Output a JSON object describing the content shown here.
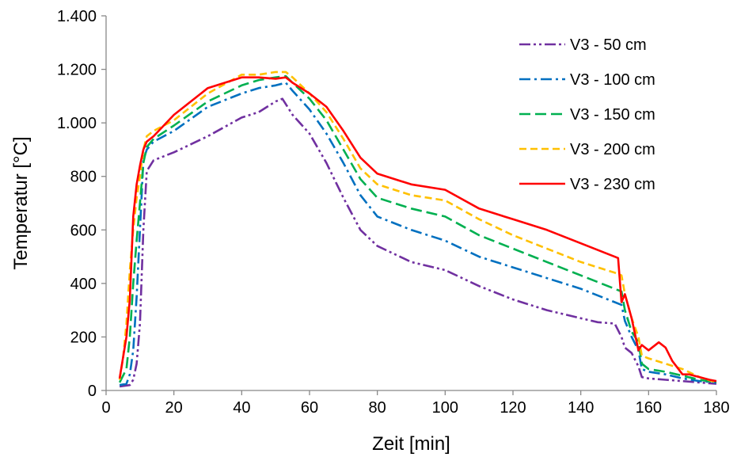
{
  "chart_data": {
    "type": "line",
    "title": "",
    "xlabel": "Zeit [min]",
    "ylabel": "Temperatur [°C]",
    "xlim": [
      0,
      180
    ],
    "ylim": [
      0,
      1400
    ],
    "xticks": [
      0,
      20,
      40,
      60,
      80,
      100,
      120,
      140,
      160,
      180
    ],
    "yticks": [
      0,
      200,
      400,
      600,
      800,
      1000,
      1200,
      1400
    ],
    "x_tick_labels": [
      "0",
      "20",
      "40",
      "60",
      "80",
      "100",
      "120",
      "140",
      "160",
      "180"
    ],
    "y_tick_labels": [
      "0",
      "200",
      "400",
      "600",
      "800",
      "1.000",
      "1.200",
      "1.400"
    ],
    "grid": false,
    "legend_position": "top-right",
    "series": [
      {
        "name": "V3 - 50 cm",
        "color": "#7030A0",
        "dash": "long-dash-dot-dot",
        "x": [
          4,
          7,
          8,
          9,
          10,
          11,
          12,
          14,
          20,
          30,
          40,
          45,
          50,
          52,
          55,
          60,
          65,
          70,
          75,
          80,
          90,
          100,
          110,
          120,
          130,
          140,
          145,
          150,
          152,
          153,
          155,
          157,
          158,
          160,
          165,
          170,
          175,
          180
        ],
        "y": [
          15,
          20,
          40,
          100,
          250,
          600,
          820,
          860,
          890,
          950,
          1020,
          1040,
          1080,
          1090,
          1030,
          960,
          850,
          720,
          600,
          540,
          480,
          450,
          390,
          340,
          300,
          270,
          255,
          250,
          200,
          160,
          140,
          90,
          50,
          45,
          40,
          35,
          30,
          25
        ]
      },
      {
        "name": "V3 - 100 cm",
        "color": "#0070C0",
        "dash": "long-dash-dot",
        "x": [
          4,
          6,
          7,
          8,
          9,
          10,
          11,
          12,
          14,
          20,
          30,
          40,
          45,
          50,
          53,
          55,
          60,
          65,
          70,
          75,
          80,
          90,
          100,
          110,
          120,
          130,
          140,
          150,
          152,
          153,
          155,
          157,
          158,
          160,
          165,
          170,
          175,
          180
        ],
        "y": [
          20,
          25,
          60,
          150,
          350,
          600,
          860,
          900,
          930,
          970,
          1060,
          1110,
          1130,
          1140,
          1150,
          1120,
          1050,
          960,
          850,
          730,
          650,
          600,
          560,
          500,
          460,
          420,
          380,
          330,
          320,
          260,
          200,
          150,
          80,
          70,
          60,
          45,
          35,
          30
        ]
      },
      {
        "name": "V3 - 150 cm",
        "color": "#00B050",
        "dash": "long-dash",
        "x": [
          4,
          6,
          7,
          8,
          9,
          10,
          11,
          12,
          14,
          20,
          30,
          40,
          45,
          50,
          53,
          55,
          60,
          65,
          70,
          75,
          80,
          90,
          100,
          110,
          120,
          130,
          140,
          150,
          152,
          153,
          155,
          157,
          158,
          160,
          165,
          170,
          175,
          180
        ],
        "y": [
          30,
          80,
          200,
          400,
          560,
          700,
          850,
          910,
          940,
          990,
          1080,
          1140,
          1160,
          1170,
          1175,
          1150,
          1090,
          1010,
          900,
          790,
          720,
          680,
          650,
          580,
          530,
          480,
          430,
          380,
          370,
          300,
          220,
          180,
          100,
          80,
          70,
          55,
          40,
          30
        ]
      },
      {
        "name": "V3 - 200 cm",
        "color": "#FFC000",
        "dash": "dash",
        "x": [
          4,
          5,
          6,
          7,
          8,
          9,
          10,
          11,
          12,
          14,
          20,
          30,
          40,
          45,
          50,
          53,
          55,
          60,
          65,
          70,
          75,
          80,
          90,
          100,
          110,
          120,
          130,
          140,
          150,
          152,
          153,
          155,
          157,
          158,
          160,
          165,
          170,
          175,
          180
        ],
        "y": [
          40,
          120,
          250,
          450,
          600,
          720,
          800,
          900,
          950,
          970,
          1010,
          1110,
          1180,
          1180,
          1190,
          1190,
          1170,
          1110,
          1040,
          940,
          830,
          770,
          730,
          710,
          640,
          580,
          530,
          480,
          440,
          430,
          360,
          270,
          200,
          130,
          120,
          100,
          80,
          50,
          30
        ]
      },
      {
        "name": "V3 - 230 cm",
        "color": "#FF0000",
        "dash": "solid",
        "x": [
          4,
          6,
          7,
          8,
          9,
          10,
          11,
          12,
          14,
          20,
          30,
          40,
          45,
          50,
          53,
          55,
          60,
          65,
          70,
          75,
          80,
          90,
          100,
          110,
          120,
          130,
          140,
          150,
          151,
          152,
          153,
          155,
          157,
          158,
          160,
          163,
          165,
          167,
          170,
          172,
          175,
          178,
          180
        ],
        "y": [
          45,
          200,
          340,
          650,
          770,
          840,
          900,
          930,
          950,
          1030,
          1130,
          1170,
          1170,
          1165,
          1170,
          1150,
          1110,
          1060,
          970,
          870,
          810,
          770,
          750,
          680,
          640,
          600,
          550,
          500,
          495,
          330,
          360,
          270,
          150,
          170,
          150,
          180,
          160,
          110,
          60,
          60,
          50,
          40,
          35
        ]
      }
    ]
  }
}
